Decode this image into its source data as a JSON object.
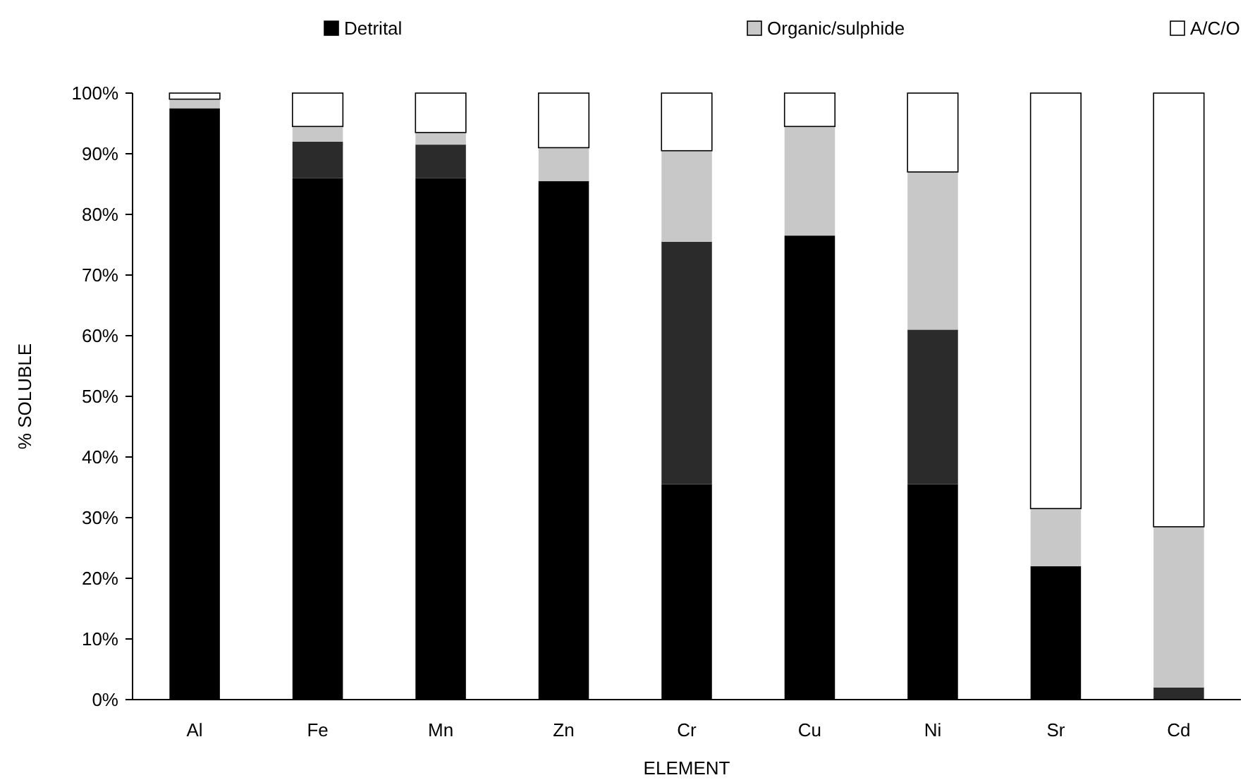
{
  "chart_data": {
    "type": "bar",
    "stacked": true,
    "xlabel": "ELEMENT",
    "ylabel": "% SOLUBLE",
    "legend": "top",
    "grid": false,
    "categories": [
      "Al",
      "Fe",
      "Mn",
      "Zn",
      "Cr",
      "Cu",
      "Ni",
      "Sr",
      "Cd"
    ],
    "series": [
      {
        "name": "Detrital",
        "color": "#000000",
        "values": [
          97.5,
          86,
          86,
          85.5,
          35.5,
          76.5,
          35.5,
          22,
          0
        ]
      },
      {
        "color": "#2b2b2b",
        "values": [
          0,
          6,
          5.5,
          0,
          40,
          0,
          25.5,
          0,
          2
        ]
      },
      {
        "name": "Organic/sulphide",
        "color": "#c8c8c8",
        "values": [
          1.5,
          2.5,
          2,
          5.5,
          15,
          18,
          26,
          9.5,
          26.5
        ]
      },
      {
        "name": "A/C/O",
        "color": "#ffffff",
        "values": [
          1,
          5.5,
          6.5,
          9,
          9.5,
          5.5,
          13,
          68.5,
          71.5
        ]
      }
    ],
    "ylim": [
      0,
      100
    ],
    "yticks": [
      {
        "value": 0,
        "label": "0%"
      },
      {
        "value": 10,
        "label": "10%"
      },
      {
        "value": 20,
        "label": "20%"
      },
      {
        "value": 30,
        "label": "30%"
      },
      {
        "value": 40,
        "label": "40%"
      },
      {
        "value": 50,
        "label": "50%"
      },
      {
        "value": 60,
        "label": "60%"
      },
      {
        "value": 70,
        "label": "70%"
      },
      {
        "value": 80,
        "label": "80%"
      },
      {
        "value": 90,
        "label": "90%"
      },
      {
        "value": 100,
        "label": "100%"
      }
    ]
  }
}
